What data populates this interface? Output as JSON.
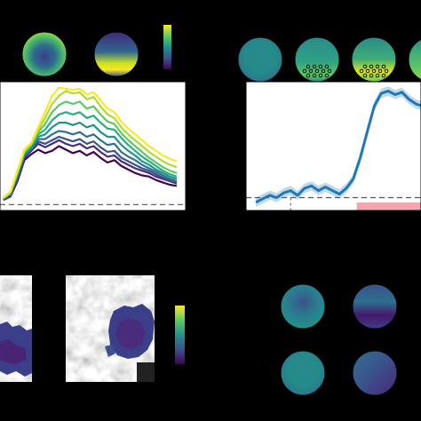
{
  "figure": {
    "background": "#000000",
    "panel_background": "#ffffff",
    "colormap": [
      "#440154",
      "#3b528b",
      "#21918c",
      "#5ec962",
      "#fde725"
    ]
  },
  "chart_data": [
    {
      "type": "line",
      "x": [
        0,
        4,
        8,
        12,
        16,
        20,
        24,
        28,
        32,
        36,
        40,
        44,
        48,
        52,
        56,
        60,
        64,
        68,
        72,
        76,
        80,
        84,
        88,
        92,
        96,
        100
      ],
      "series": [
        {
          "color": "#440154",
          "values": [
            0.04,
            0.07,
            0.2,
            0.38,
            0.43,
            0.47,
            0.44,
            0.46,
            0.5,
            0.47,
            0.44,
            0.46,
            0.42,
            0.45,
            0.4,
            0.36,
            0.38,
            0.33,
            0.3,
            0.27,
            0.25,
            0.24,
            0.21,
            0.19,
            0.17,
            0.16
          ]
        },
        {
          "color": "#472d7b",
          "values": [
            0.04,
            0.08,
            0.22,
            0.4,
            0.46,
            0.52,
            0.49,
            0.52,
            0.55,
            0.52,
            0.5,
            0.52,
            0.48,
            0.5,
            0.45,
            0.41,
            0.42,
            0.37,
            0.34,
            0.31,
            0.29,
            0.27,
            0.24,
            0.22,
            0.2,
            0.18
          ]
        },
        {
          "color": "#3b528b",
          "values": [
            0.05,
            0.08,
            0.23,
            0.41,
            0.47,
            0.54,
            0.52,
            0.55,
            0.58,
            0.56,
            0.54,
            0.56,
            0.52,
            0.54,
            0.49,
            0.45,
            0.46,
            0.4,
            0.37,
            0.34,
            0.31,
            0.29,
            0.26,
            0.23,
            0.21,
            0.19
          ]
        },
        {
          "color": "#2c728e",
          "values": [
            0.05,
            0.09,
            0.24,
            0.42,
            0.48,
            0.56,
            0.56,
            0.6,
            0.63,
            0.62,
            0.6,
            0.62,
            0.58,
            0.6,
            0.55,
            0.51,
            0.52,
            0.45,
            0.41,
            0.38,
            0.34,
            0.31,
            0.28,
            0.25,
            0.22,
            0.2
          ]
        },
        {
          "color": "#21918c",
          "values": [
            0.05,
            0.09,
            0.25,
            0.43,
            0.49,
            0.58,
            0.6,
            0.66,
            0.7,
            0.7,
            0.68,
            0.7,
            0.66,
            0.68,
            0.62,
            0.58,
            0.58,
            0.51,
            0.46,
            0.42,
            0.37,
            0.34,
            0.3,
            0.27,
            0.24,
            0.22
          ]
        },
        {
          "color": "#28ae80",
          "values": [
            0.05,
            0.1,
            0.26,
            0.44,
            0.5,
            0.6,
            0.64,
            0.72,
            0.77,
            0.79,
            0.77,
            0.79,
            0.74,
            0.76,
            0.7,
            0.65,
            0.64,
            0.57,
            0.51,
            0.46,
            0.41,
            0.37,
            0.33,
            0.29,
            0.26,
            0.24
          ]
        },
        {
          "color": "#5ec962",
          "values": [
            0.06,
            0.1,
            0.27,
            0.45,
            0.51,
            0.62,
            0.69,
            0.79,
            0.85,
            0.88,
            0.86,
            0.88,
            0.82,
            0.84,
            0.77,
            0.71,
            0.69,
            0.61,
            0.55,
            0.5,
            0.45,
            0.4,
            0.36,
            0.32,
            0.29,
            0.27
          ]
        },
        {
          "color": "#addc30",
          "values": [
            0.06,
            0.11,
            0.28,
            0.46,
            0.52,
            0.64,
            0.74,
            0.86,
            0.93,
            0.97,
            0.95,
            0.96,
            0.9,
            0.92,
            0.84,
            0.77,
            0.74,
            0.66,
            0.6,
            0.55,
            0.5,
            0.45,
            0.41,
            0.37,
            0.34,
            0.32
          ]
        },
        {
          "color": "#fde725",
          "values": [
            0.06,
            0.11,
            0.29,
            0.47,
            0.53,
            0.66,
            0.79,
            0.93,
            1.0,
            0.99,
            0.98,
            0.99,
            0.94,
            0.96,
            0.89,
            0.82,
            0.79,
            0.71,
            0.65,
            0.6,
            0.55,
            0.5,
            0.46,
            0.42,
            0.39,
            0.37
          ]
        }
      ],
      "ylim": [
        -0.05,
        1.05
      ],
      "baseline": 0.0
    },
    {
      "type": "line",
      "x": [
        0,
        4,
        8,
        12,
        16,
        20,
        24,
        28,
        32,
        36,
        40,
        44,
        48,
        52,
        56,
        60,
        64,
        68,
        72,
        76,
        80,
        84,
        88,
        92,
        96,
        100
      ],
      "series": [
        {
          "color": "#1f77b4",
          "values": [
            0.02,
            0.05,
            0.08,
            0.06,
            0.1,
            0.12,
            0.08,
            0.14,
            0.16,
            0.12,
            0.15,
            0.12,
            0.09,
            0.14,
            0.22,
            0.4,
            0.62,
            0.84,
            0.95,
            0.97,
            0.94,
            0.96,
            0.9,
            0.86,
            0.84,
            0.8
          ]
        }
      ],
      "band_halfwidth": 0.04,
      "ylim": [
        -0.05,
        1.05
      ],
      "baseline": 0.06,
      "vline_x": 20,
      "highlight_span": [
        58,
        100
      ],
      "highlight_color": "#f4a6ae"
    }
  ],
  "topomaps": [
    {
      "variant": "center-blue"
    },
    {
      "variant": "yellow-bottom"
    },
    {
      "variant": "uniform-teal"
    },
    {
      "variant": "green-bottom-dots"
    },
    {
      "variant": "yellow-bottom-dots"
    },
    {
      "variant": "green-cut"
    },
    {
      "variant": "teal-purple-top"
    },
    {
      "variant": "purple-bottom"
    },
    {
      "variant": "uniform-teal"
    },
    {
      "variant": "purple-right"
    }
  ]
}
